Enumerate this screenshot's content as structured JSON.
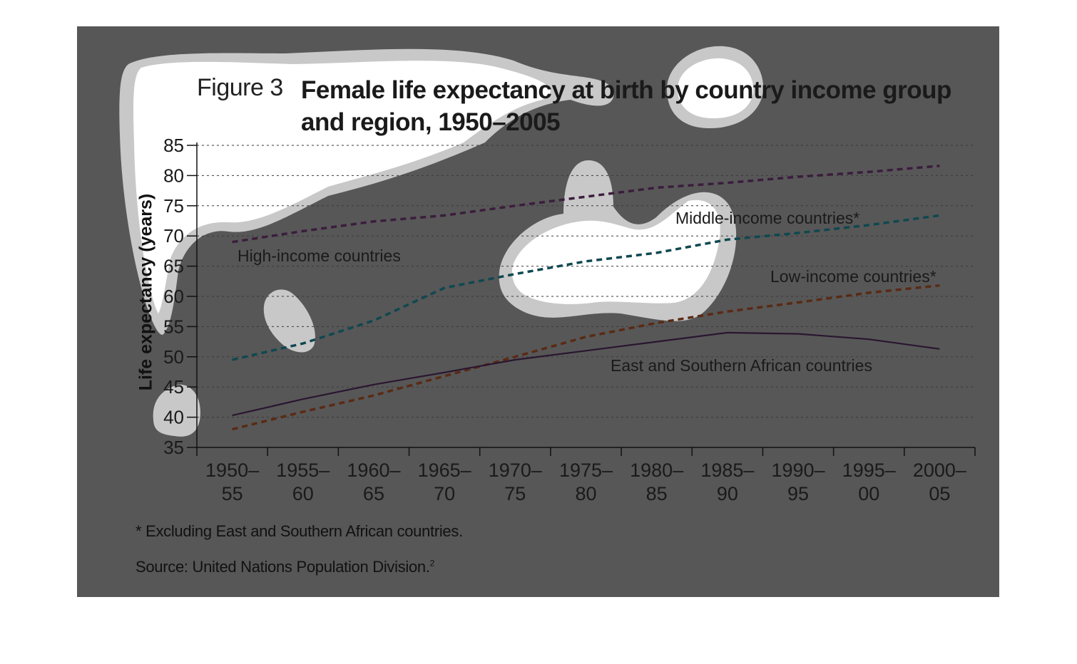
{
  "figure": {
    "label": "Figure 3",
    "title": "Female life expectancy at birth by country income group and region, 1950–2005"
  },
  "notes": {
    "footnote": "* Excluding East and Southern African countries.",
    "source": "Source: United Nations Population Division.",
    "source_ref": "2"
  },
  "chart_data": {
    "type": "line",
    "title": "Female life expectancy at birth by country income group and region, 1950–2005",
    "xlabel": "",
    "ylabel": "Life expectancy (years)",
    "categories": [
      [
        "1950–",
        "55"
      ],
      [
        "1955–",
        "60"
      ],
      [
        "1960–",
        "65"
      ],
      [
        "1965–",
        "70"
      ],
      [
        "1970–",
        "75"
      ],
      [
        "1975–",
        "80"
      ],
      [
        "1980–",
        "85"
      ],
      [
        "1985–",
        "90"
      ],
      [
        "1990–",
        "95"
      ],
      [
        "1995–",
        "00"
      ],
      [
        "2000–",
        "05"
      ]
    ],
    "ylim": [
      35,
      85
    ],
    "yticks": [
      35,
      40,
      45,
      50,
      55,
      60,
      65,
      70,
      75,
      80,
      85
    ],
    "grid": true,
    "series": [
      {
        "name": "High-income countries",
        "style": "dashed",
        "color": "#3b1d3d",
        "values": [
          69,
          70.8,
          72.4,
          73.4,
          75.0,
          76.5,
          78.0,
          78.8,
          79.8,
          80.6,
          81.6
        ]
      },
      {
        "name": "Middle-income countries*",
        "style": "dashed",
        "color": "#0f4850",
        "values": [
          49.5,
          52.2,
          56.0,
          61.4,
          63.7,
          65.8,
          67.2,
          69.4,
          70.5,
          71.8,
          73.4
        ]
      },
      {
        "name": "Low-income countries*",
        "style": "dashed",
        "color": "#5a2a14",
        "values": [
          38.0,
          40.9,
          43.6,
          46.8,
          50.0,
          53.3,
          55.6,
          57.5,
          59.0,
          60.6,
          61.8
        ]
      },
      {
        "name": "East and Southern African countries",
        "style": "solid",
        "color": "#2a1630",
        "values": [
          40.3,
          43.0,
          45.4,
          47.4,
          49.5,
          51.0,
          52.5,
          54.0,
          53.8,
          52.9,
          51.3
        ]
      }
    ]
  }
}
